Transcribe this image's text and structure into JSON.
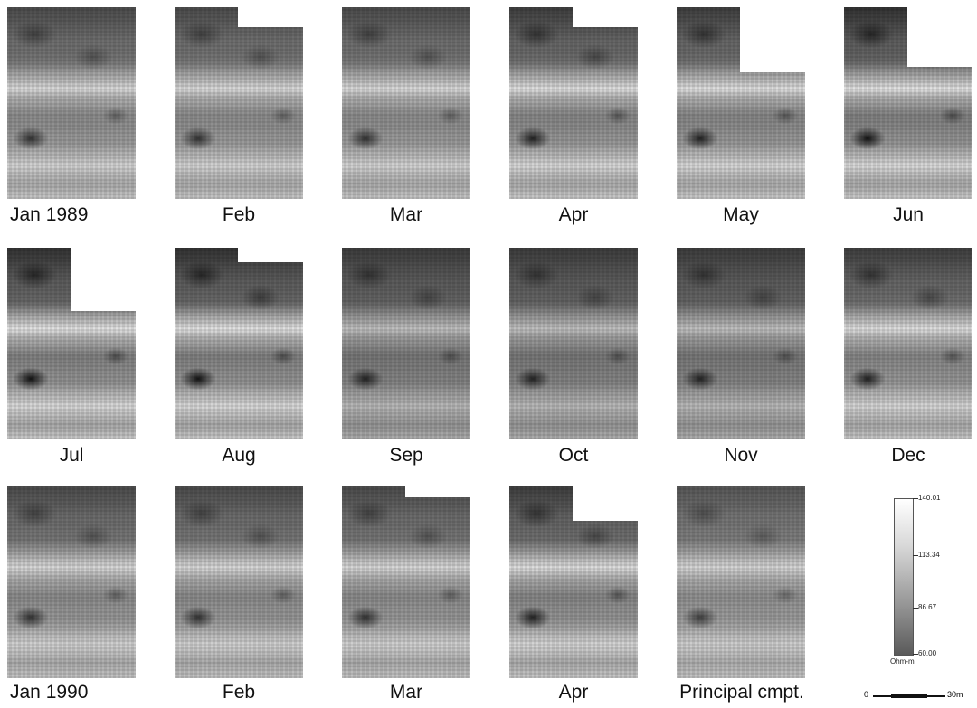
{
  "row1": {
    "labels": [
      "Jan 1989",
      "Feb",
      "Mar",
      "Apr",
      "May",
      "Jun"
    ]
  },
  "row2": {
    "labels": [
      "Jul",
      "Aug",
      "Sep",
      "Oct",
      "Nov",
      "Dec"
    ]
  },
  "row3": {
    "labels": [
      "Jan 1990",
      "Feb",
      "Mar",
      "Apr",
      "Principal cmpt."
    ]
  },
  "legend": {
    "ticks": [
      "140.01",
      "113.34",
      "86.67",
      "60.00"
    ],
    "unit": "Ohm-m"
  },
  "scalebar": {
    "start": "0",
    "end": "30m"
  },
  "colors": {
    "background": "#ffffff",
    "map_dark": "#3a3a3a",
    "map_light": "#e6e6e6"
  }
}
